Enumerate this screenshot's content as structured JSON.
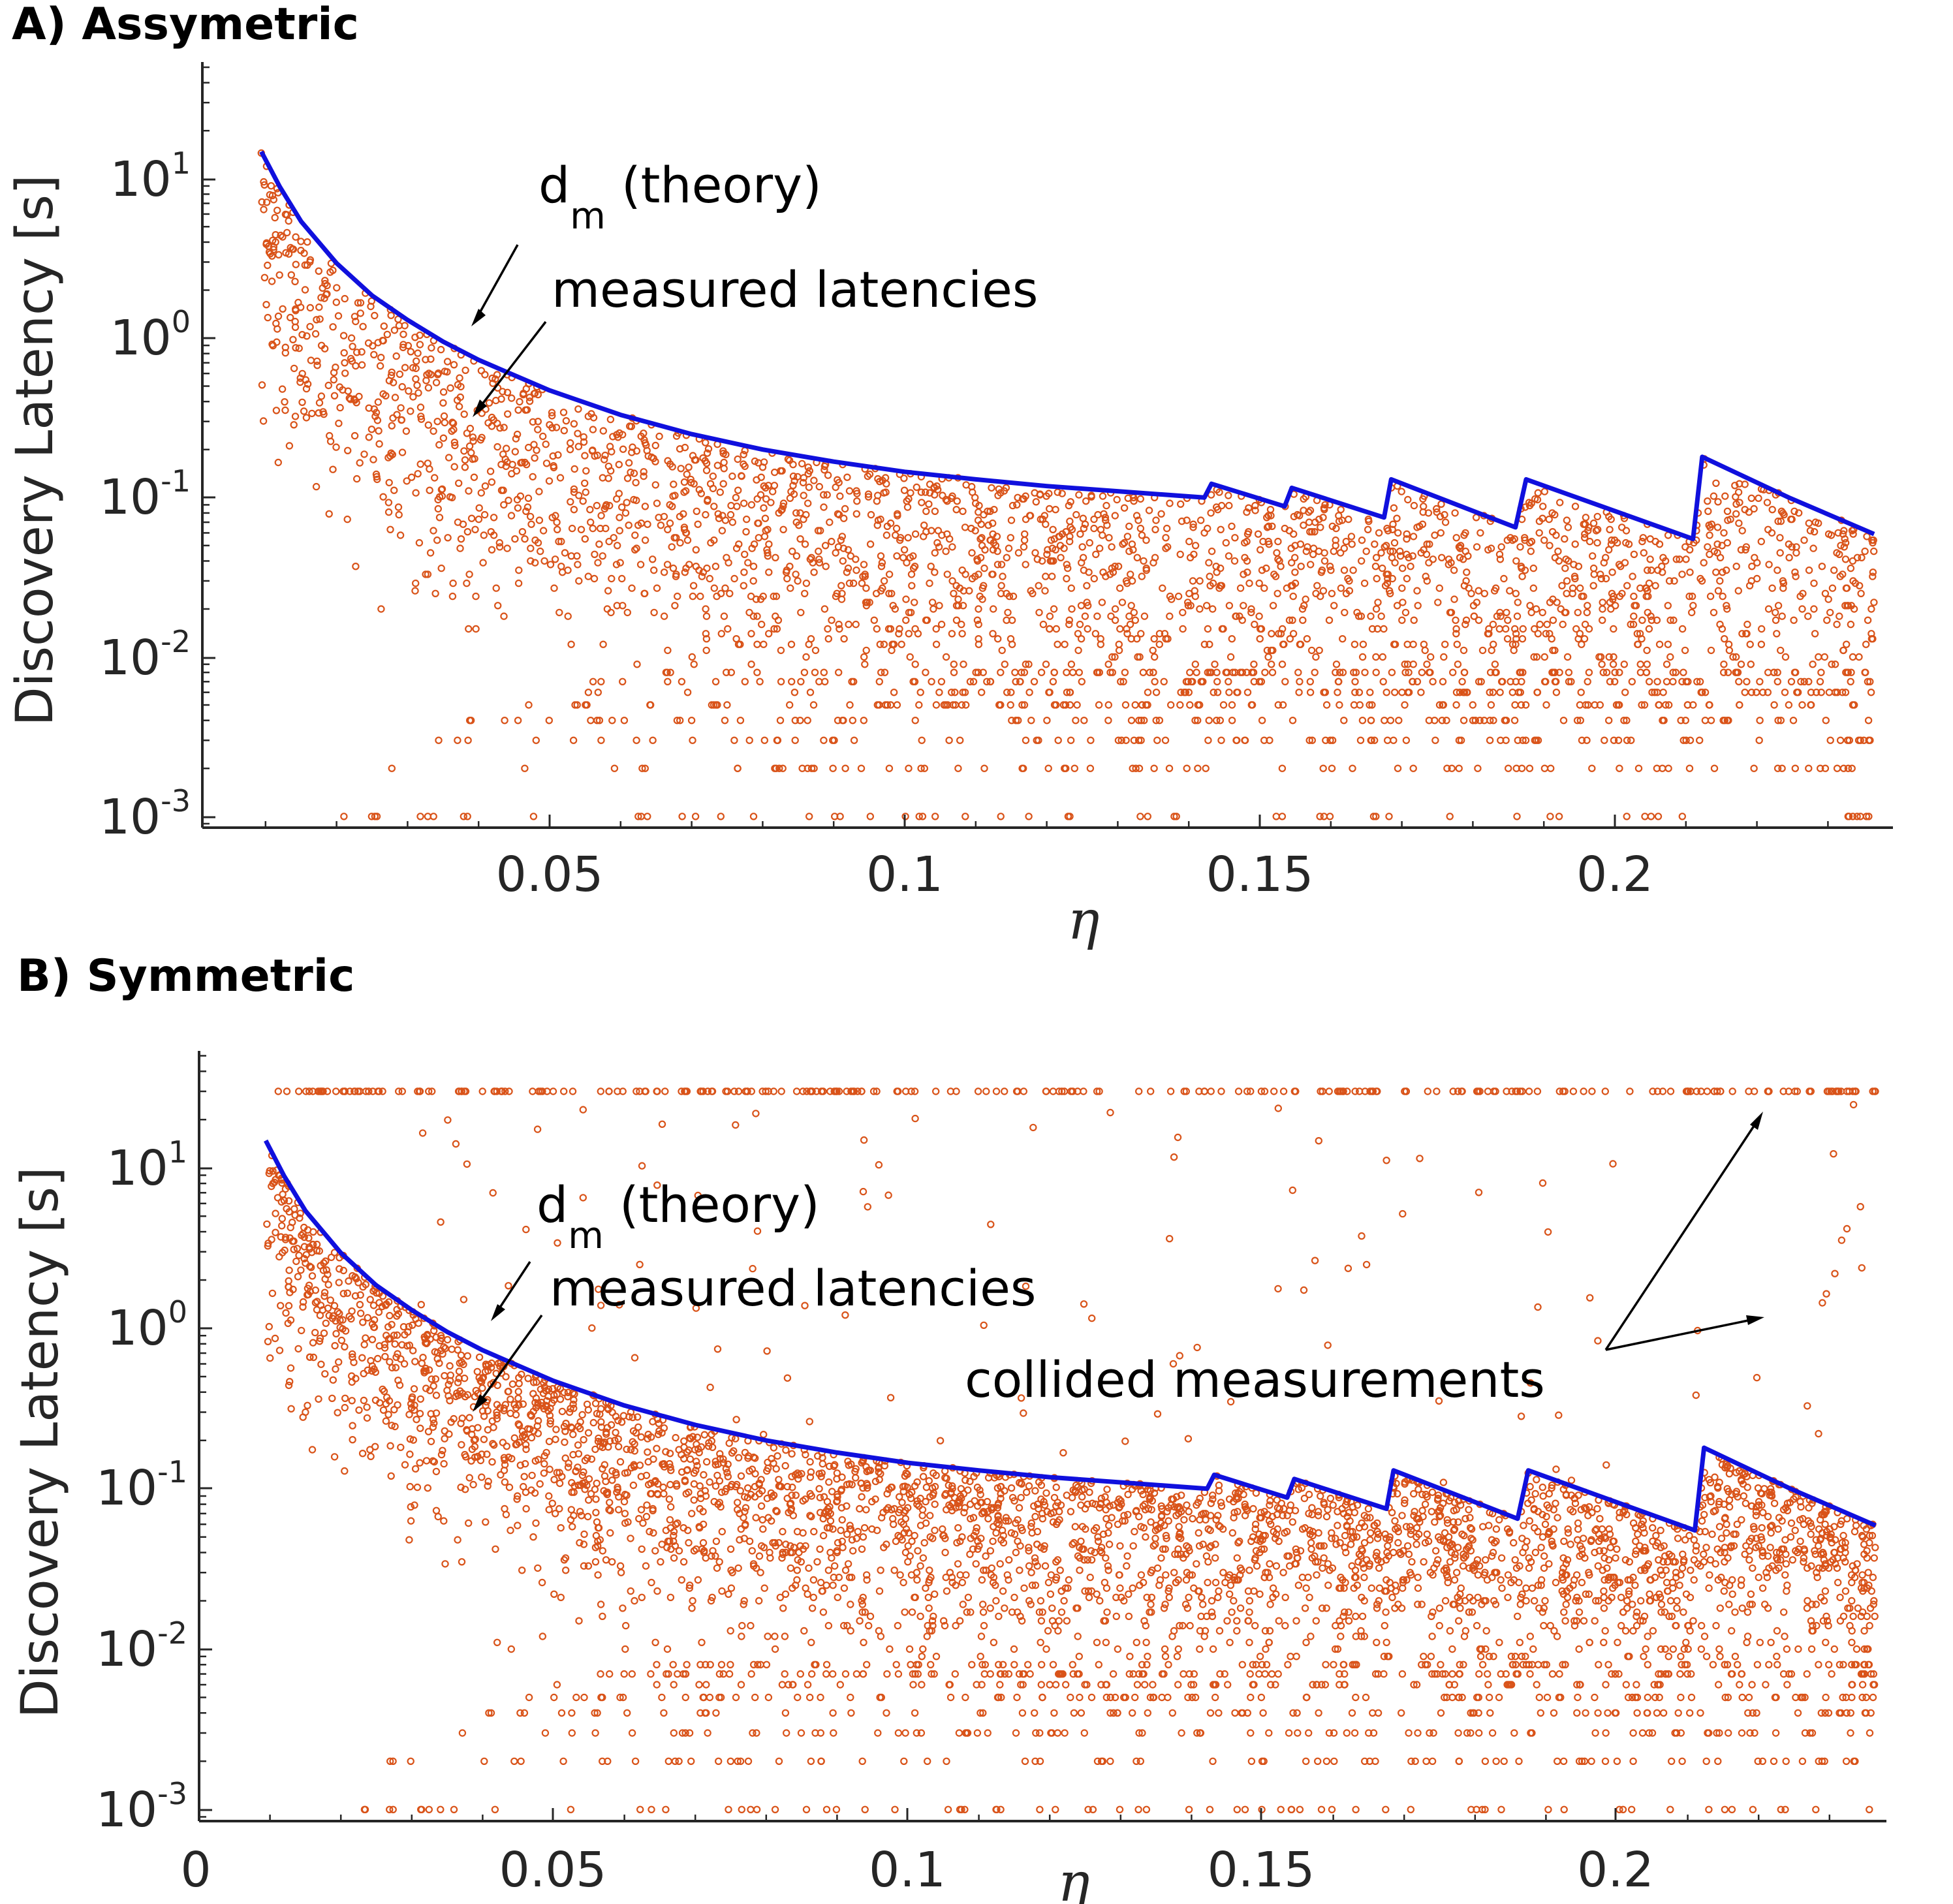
{
  "colors": {
    "scatter": "#d95319",
    "theory": "#1010dd",
    "axis": "#262626",
    "arrow": "#000000"
  },
  "chart_data": [
    {
      "type": "scatter",
      "panel_title": "A) Assymetric",
      "xlabel": "η",
      "ylabel": "Discovery Latency [s]",
      "yscale": "log",
      "xlim": [
        0,
        0.238
      ],
      "ylim": [
        0.0008,
        50
      ],
      "x_ticks": [
        {
          "value": 0.05,
          "label": "0.05"
        },
        {
          "value": 0.1,
          "label": "0.1"
        },
        {
          "value": 0.15,
          "label": "0.15"
        },
        {
          "value": 0.2,
          "label": "0.2"
        }
      ],
      "y_ticks": [
        {
          "value": 10,
          "base": "10",
          "exp": "1"
        },
        {
          "value": 1,
          "base": "10",
          "exp": "0"
        },
        {
          "value": 0.1,
          "base": "10",
          "exp": "-1"
        },
        {
          "value": 0.01,
          "base": "10",
          "exp": "-2"
        },
        {
          "value": 0.001,
          "base": "10",
          "exp": "-3"
        }
      ],
      "series": [
        {
          "name": "d_m (theory)",
          "kind": "line",
          "points": [
            [
              0.0094,
              14.8
            ],
            [
              0.012,
              8.9
            ],
            [
              0.015,
              5.4
            ],
            [
              0.02,
              2.95
            ],
            [
              0.025,
              1.85
            ],
            [
              0.03,
              1.3
            ],
            [
              0.035,
              0.95
            ],
            [
              0.04,
              0.73
            ],
            [
              0.05,
              0.47
            ],
            [
              0.06,
              0.33
            ],
            [
              0.07,
              0.25
            ],
            [
              0.08,
              0.2
            ],
            [
              0.09,
              0.168
            ],
            [
              0.1,
              0.145
            ],
            [
              0.11,
              0.13
            ],
            [
              0.12,
              0.118
            ],
            [
              0.1422,
              0.1
            ],
            [
              0.1432,
              0.122
            ],
            [
              0.1535,
              0.088
            ],
            [
              0.1545,
              0.115
            ],
            [
              0.1675,
              0.075
            ],
            [
              0.1685,
              0.13
            ],
            [
              0.186,
              0.065
            ],
            [
              0.1875,
              0.13
            ],
            [
              0.211,
              0.055
            ],
            [
              0.2123,
              0.18
            ],
            [
              0.2245,
              0.1
            ],
            [
              0.2365,
              0.059
            ]
          ]
        },
        {
          "name": "measured latencies",
          "kind": "scatter",
          "n_points": 2600,
          "x_range": [
            0.0094,
            0.2365
          ],
          "min_latency": 0.001,
          "quantization": 0.001,
          "collided_value": null
        }
      ],
      "annotations": [
        {
          "id": "theory",
          "base": "d",
          "sub": "m",
          "text": " (theory)"
        },
        {
          "id": "measured",
          "text": "measured latencies"
        }
      ]
    },
    {
      "type": "scatter",
      "panel_title": "B) Symmetric",
      "xlabel": "η",
      "ylabel": "Discovery Latency [s]",
      "yscale": "log",
      "xlim": [
        0,
        0.238
      ],
      "ylim": [
        0.0008,
        50
      ],
      "x_ticks": [
        {
          "value": 0,
          "label": "0"
        },
        {
          "value": 0.05,
          "label": "0.05"
        },
        {
          "value": 0.1,
          "label": "0.1"
        },
        {
          "value": 0.15,
          "label": "0.15"
        },
        {
          "value": 0.2,
          "label": "0.2"
        }
      ],
      "y_ticks": [
        {
          "value": 10,
          "base": "10",
          "exp": "1"
        },
        {
          "value": 1,
          "base": "10",
          "exp": "0"
        },
        {
          "value": 0.1,
          "base": "10",
          "exp": "-1"
        },
        {
          "value": 0.01,
          "base": "10",
          "exp": "-2"
        },
        {
          "value": 0.001,
          "base": "10",
          "exp": "-3"
        }
      ],
      "series": [
        {
          "name": "d_m (theory)",
          "kind": "line",
          "points": [
            [
              0.0094,
              14.8
            ],
            [
              0.012,
              8.9
            ],
            [
              0.015,
              5.4
            ],
            [
              0.02,
              2.95
            ],
            [
              0.025,
              1.85
            ],
            [
              0.03,
              1.3
            ],
            [
              0.035,
              0.95
            ],
            [
              0.04,
              0.73
            ],
            [
              0.05,
              0.47
            ],
            [
              0.06,
              0.33
            ],
            [
              0.07,
              0.25
            ],
            [
              0.08,
              0.2
            ],
            [
              0.09,
              0.168
            ],
            [
              0.1,
              0.145
            ],
            [
              0.11,
              0.13
            ],
            [
              0.12,
              0.118
            ],
            [
              0.1422,
              0.1
            ],
            [
              0.1432,
              0.122
            ],
            [
              0.1535,
              0.088
            ],
            [
              0.1545,
              0.115
            ],
            [
              0.1675,
              0.075
            ],
            [
              0.1685,
              0.13
            ],
            [
              0.186,
              0.065
            ],
            [
              0.1875,
              0.13
            ],
            [
              0.211,
              0.055
            ],
            [
              0.2123,
              0.18
            ],
            [
              0.2245,
              0.1
            ],
            [
              0.2365,
              0.059
            ]
          ]
        },
        {
          "name": "measured latencies",
          "kind": "scatter",
          "n_points": 3400,
          "x_range": [
            0.0094,
            0.2365
          ],
          "min_latency": 0.001,
          "quantization": 0.001,
          "collided_value": 30
        }
      ],
      "annotations": [
        {
          "id": "theory",
          "base": "d",
          "sub": "m",
          "text": " (theory)"
        },
        {
          "id": "measured",
          "text": "measured latencies"
        },
        {
          "id": "collided",
          "text": "collided measurements"
        }
      ]
    }
  ]
}
